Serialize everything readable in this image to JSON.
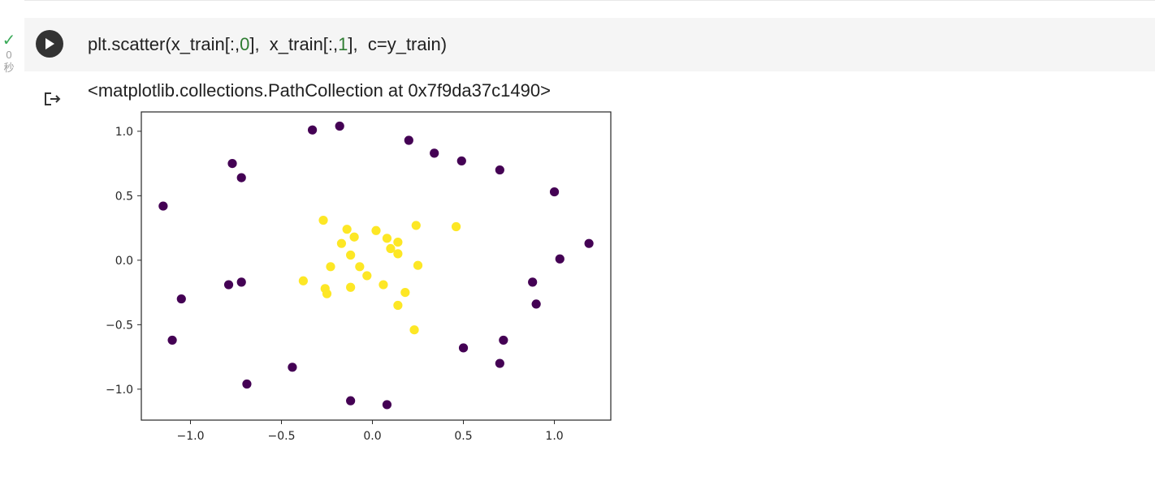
{
  "cell": {
    "status_icon": "check-icon",
    "exec_time": "0",
    "exec_unit": "秒",
    "code": {
      "p1": "plt.scatter(x_train[:,",
      "n1": "0",
      "p2": "],  x_train[:,",
      "n2": "1",
      "p3": "],  c=y_train)"
    },
    "colors": {
      "class0": "#440154",
      "class1": "#fde725",
      "number": "#2e7d32",
      "status": "#3cab5a"
    }
  },
  "output": {
    "icon": "output-redirect-icon",
    "text": "<matplotlib.collections.PathCollection at 0x7f9da37c1490>"
  },
  "chart_data": {
    "type": "scatter",
    "title": "",
    "xlabel": "",
    "ylabel": "",
    "xlim": [
      -1.27,
      1.31
    ],
    "ylim": [
      -1.24,
      1.15
    ],
    "grid": false,
    "xticks": [
      "−1.0",
      "−0.5",
      "0.0",
      "0.5",
      "1.0"
    ],
    "xtick_values": [
      -1.0,
      -0.5,
      0.0,
      0.5,
      1.0
    ],
    "yticks": [
      "1.0",
      "0.5",
      "0.0",
      "−0.5",
      "−1.0"
    ],
    "ytick_values": [
      1.0,
      0.5,
      0.0,
      -0.5,
      -1.0
    ],
    "series": [
      {
        "color": "#440154",
        "x": [
          -0.33,
          -0.18,
          0.2,
          0.34,
          0.49,
          0.7,
          1.0,
          -0.77,
          -0.72,
          -1.15,
          1.19,
          1.03,
          0.88,
          0.9,
          -0.79,
          -0.72,
          -1.05,
          -1.1,
          0.5,
          0.72,
          0.7,
          -0.69,
          -0.44,
          -0.12,
          0.08
        ],
        "y": [
          1.01,
          1.04,
          0.93,
          0.83,
          0.77,
          0.7,
          0.53,
          0.75,
          0.64,
          0.42,
          0.13,
          0.01,
          -0.17,
          -0.34,
          -0.19,
          -0.17,
          -0.3,
          -0.62,
          -0.68,
          -0.62,
          -0.8,
          -0.96,
          -0.83,
          -1.09,
          -1.12
        ]
      },
      {
        "color": "#fde725",
        "x": [
          -0.27,
          -0.14,
          -0.1,
          -0.17,
          0.02,
          0.08,
          0.14,
          0.1,
          0.14,
          0.24,
          0.46,
          -0.12,
          -0.23,
          -0.07,
          -0.03,
          -0.38,
          -0.26,
          -0.25,
          -0.12,
          0.06,
          0.18,
          0.14,
          0.25,
          0.23
        ],
        "y": [
          0.31,
          0.24,
          0.18,
          0.13,
          0.23,
          0.17,
          0.14,
          0.09,
          0.05,
          0.27,
          0.26,
          0.04,
          -0.05,
          -0.05,
          -0.12,
          -0.16,
          -0.22,
          -0.26,
          -0.21,
          -0.19,
          -0.25,
          -0.35,
          -0.04,
          -0.54
        ]
      }
    ]
  }
}
